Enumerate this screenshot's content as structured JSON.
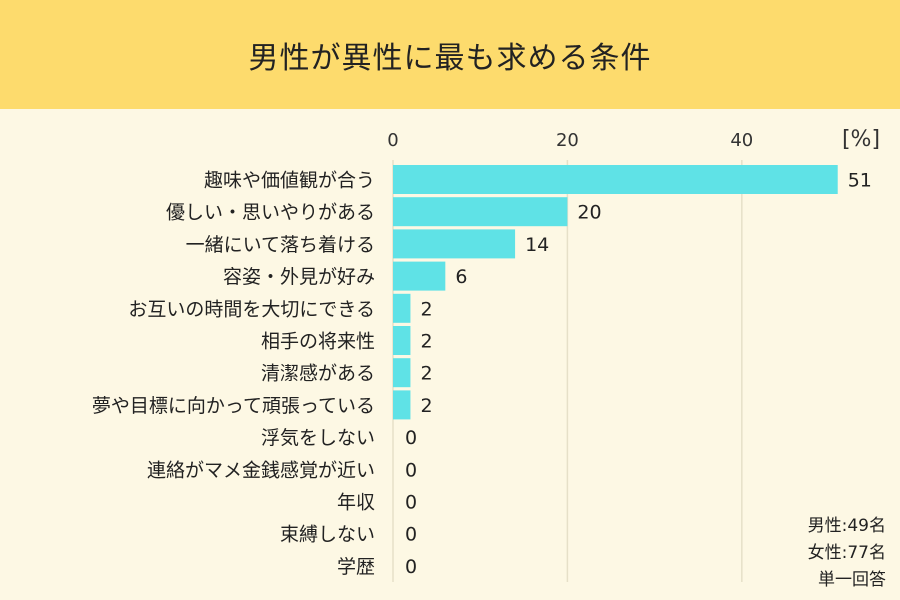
{
  "header": {
    "title": "男性が異性に最も求める条件"
  },
  "chart_data": {
    "type": "bar",
    "orientation": "horizontal",
    "title": "男性が異性に最も求める条件",
    "unit_label": "[%]",
    "xlim": [
      0,
      51
    ],
    "xticks": [
      0,
      20,
      40
    ],
    "grid": true,
    "bar_color": "#5fe2e6",
    "categories": [
      "趣味や価値観が合う",
      "優しい・思いやりがある",
      "一緒にいて落ち着ける",
      "容姿・外見が好み",
      "お互いの時間を大切にできる",
      "相手の将来性",
      "清潔感がある",
      "夢や目標に向かって頑張っている",
      "浮気をしない",
      "連絡がマメ金銭感覚が近い",
      "年収",
      "束縛しない",
      "学歴"
    ],
    "values": [
      51,
      20,
      14,
      6,
      2,
      2,
      2,
      2,
      0,
      0,
      0,
      0,
      0
    ]
  },
  "notes": {
    "male": "男性:49名",
    "female": "女性:77名",
    "answer_type": "単一回答"
  }
}
